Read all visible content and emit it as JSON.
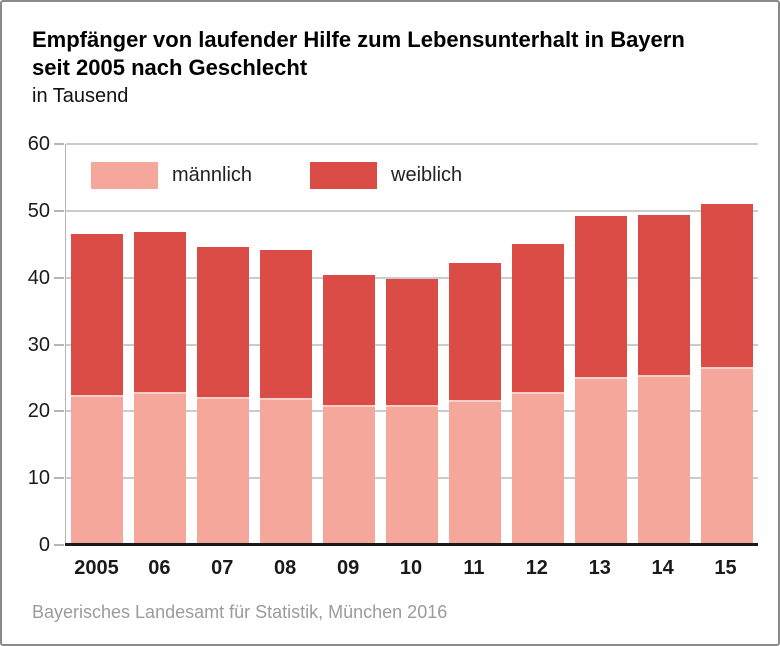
{
  "title": {
    "line1": "Empfänger von laufender Hilfe zum Lebensunterhalt in Bayern",
    "line2": "seit 2005 nach Geschlecht",
    "subtitle": "in Tausend"
  },
  "legend": [
    {
      "label": "männlich",
      "color": "#F5A79B"
    },
    {
      "label": "weiblich",
      "color": "#DB4C46"
    }
  ],
  "footer": "Bayerisches Landesamt für Statistik, München 2016",
  "colors": {
    "male": "#F5A79B",
    "female": "#DB4C46",
    "segment_separator": "#F9D0C9",
    "gridline": "#CBCBCB",
    "axis_line": "#B5B5B5",
    "baseline": "#1A1A1A",
    "axis_text": "#1A1A1A",
    "footer_text": "#9B9B9B",
    "frame_border": "#8A8A8A"
  },
  "chart_data": {
    "type": "bar",
    "stacked": true,
    "title": "Empfänger von laufender Hilfe zum Lebensunterhalt in Bayern seit 2005 nach Geschlecht",
    "subtitle": "in Tausend",
    "xlabel": "",
    "ylabel": "",
    "ylim": [
      0,
      60
    ],
    "yticks": [
      0,
      10,
      20,
      30,
      40,
      50,
      60
    ],
    "grid": true,
    "legend_position": "top-left-inside",
    "categories": [
      "2005",
      "06",
      "07",
      "08",
      "09",
      "10",
      "11",
      "12",
      "13",
      "14",
      "15"
    ],
    "series": [
      {
        "name": "männlich",
        "color": "#F5A79B",
        "values": [
          22.4,
          22.9,
          22.1,
          22.0,
          21.0,
          20.9,
          21.7,
          22.9,
          25.2,
          25.5,
          26.7
        ]
      },
      {
        "name": "weiblich",
        "color": "#DB4C46",
        "values": [
          24.2,
          24.0,
          22.5,
          22.2,
          19.4,
          18.9,
          20.5,
          22.2,
          24.1,
          23.9,
          24.4
        ]
      }
    ],
    "totals": [
      46.6,
      46.9,
      44.6,
      44.2,
      40.4,
      39.8,
      42.2,
      45.1,
      49.3,
      49.4,
      51.1
    ]
  }
}
